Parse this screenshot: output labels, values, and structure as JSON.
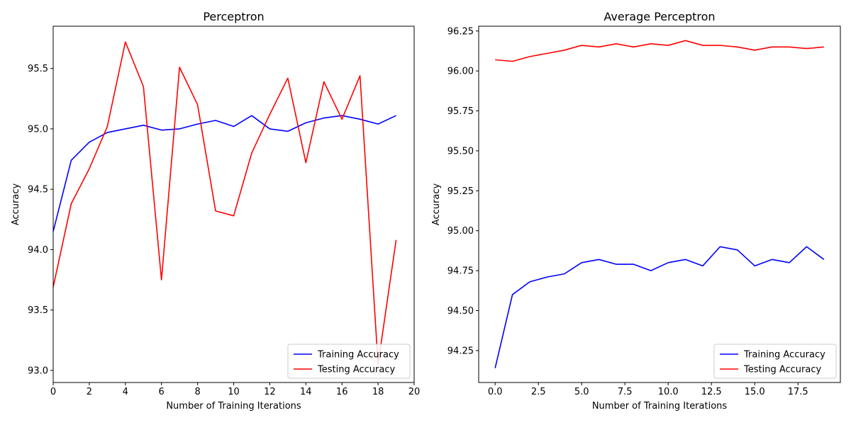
{
  "chart_data": [
    {
      "type": "line",
      "title": "Perceptron",
      "xlabel": "Number of Training Iterations",
      "ylabel": "Accuracy",
      "xlim": [
        0,
        20
      ],
      "ylim": [
        92.9,
        95.85
      ],
      "xticks": [
        0,
        2,
        4,
        6,
        8,
        10,
        12,
        14,
        16,
        18,
        20
      ],
      "xtick_labels": [
        "0",
        "2",
        "4",
        "6",
        "8",
        "10",
        "12",
        "14",
        "16",
        "18",
        "20"
      ],
      "yticks": [
        93.0,
        93.5,
        94.0,
        94.5,
        95.0,
        95.5
      ],
      "ytick_labels": [
        "93.0",
        "93.5",
        "94.0",
        "94.5",
        "95.0",
        "95.5"
      ],
      "grid": false,
      "legend_position": "lower right",
      "x": [
        0,
        1,
        2,
        3,
        4,
        5,
        6,
        7,
        8,
        9,
        10,
        11,
        12,
        13,
        14,
        15,
        16,
        17,
        18,
        19
      ],
      "series": [
        {
          "name": "Training Accuracy",
          "color": "#0000ff",
          "values": [
            94.15,
            94.74,
            94.89,
            94.97,
            95.0,
            95.03,
            94.99,
            95.0,
            95.04,
            95.07,
            95.02,
            95.11,
            95.0,
            94.98,
            95.05,
            95.09,
            95.11,
            95.08,
            95.04,
            95.11
          ]
        },
        {
          "name": "Testing Accuracy",
          "color": "#ff0000",
          "values": [
            93.69,
            94.38,
            94.67,
            95.02,
            95.72,
            95.35,
            93.75,
            95.51,
            95.2,
            94.32,
            94.28,
            94.8,
            95.12,
            95.42,
            94.72,
            95.39,
            95.08,
            95.44,
            93.05,
            94.08
          ]
        }
      ]
    },
    {
      "type": "line",
      "title": "Average Perceptron",
      "xlabel": "Number of Training Iterations",
      "ylabel": "Accuracy",
      "xlim": [
        -0.95,
        19.95
      ],
      "ylim": [
        94.05,
        96.28
      ],
      "xticks": [
        0,
        2.5,
        5,
        7.5,
        10,
        12.5,
        15,
        17.5
      ],
      "xtick_labels": [
        "0.0",
        "2.5",
        "5.0",
        "7.5",
        "10.0",
        "12.5",
        "15.0",
        "17.5"
      ],
      "yticks": [
        94.25,
        94.5,
        94.75,
        95.0,
        95.25,
        95.5,
        95.75,
        96.0,
        96.25
      ],
      "ytick_labels": [
        "94.25",
        "94.50",
        "94.75",
        "95.00",
        "95.25",
        "95.50",
        "95.75",
        "96.00",
        "96.25"
      ],
      "grid": false,
      "legend_position": "lower right",
      "x": [
        0,
        1,
        2,
        3,
        4,
        5,
        6,
        7,
        8,
        9,
        10,
        11,
        12,
        13,
        14,
        15,
        16,
        17,
        18,
        19
      ],
      "series": [
        {
          "name": "Training Accuracy",
          "color": "#0000ff",
          "values": [
            94.14,
            94.6,
            94.68,
            94.71,
            94.73,
            94.8,
            94.82,
            94.79,
            94.79,
            94.75,
            94.8,
            94.82,
            94.78,
            94.9,
            94.88,
            94.78,
            94.82,
            94.8,
            94.9,
            94.82
          ]
        },
        {
          "name": "Testing Accuracy",
          "color": "#ff0000",
          "values": [
            96.07,
            96.06,
            96.09,
            96.11,
            96.13,
            96.16,
            96.15,
            96.17,
            96.15,
            96.17,
            96.16,
            96.19,
            96.16,
            96.16,
            96.15,
            96.13,
            96.15,
            96.15,
            96.14,
            96.15
          ]
        }
      ]
    }
  ]
}
